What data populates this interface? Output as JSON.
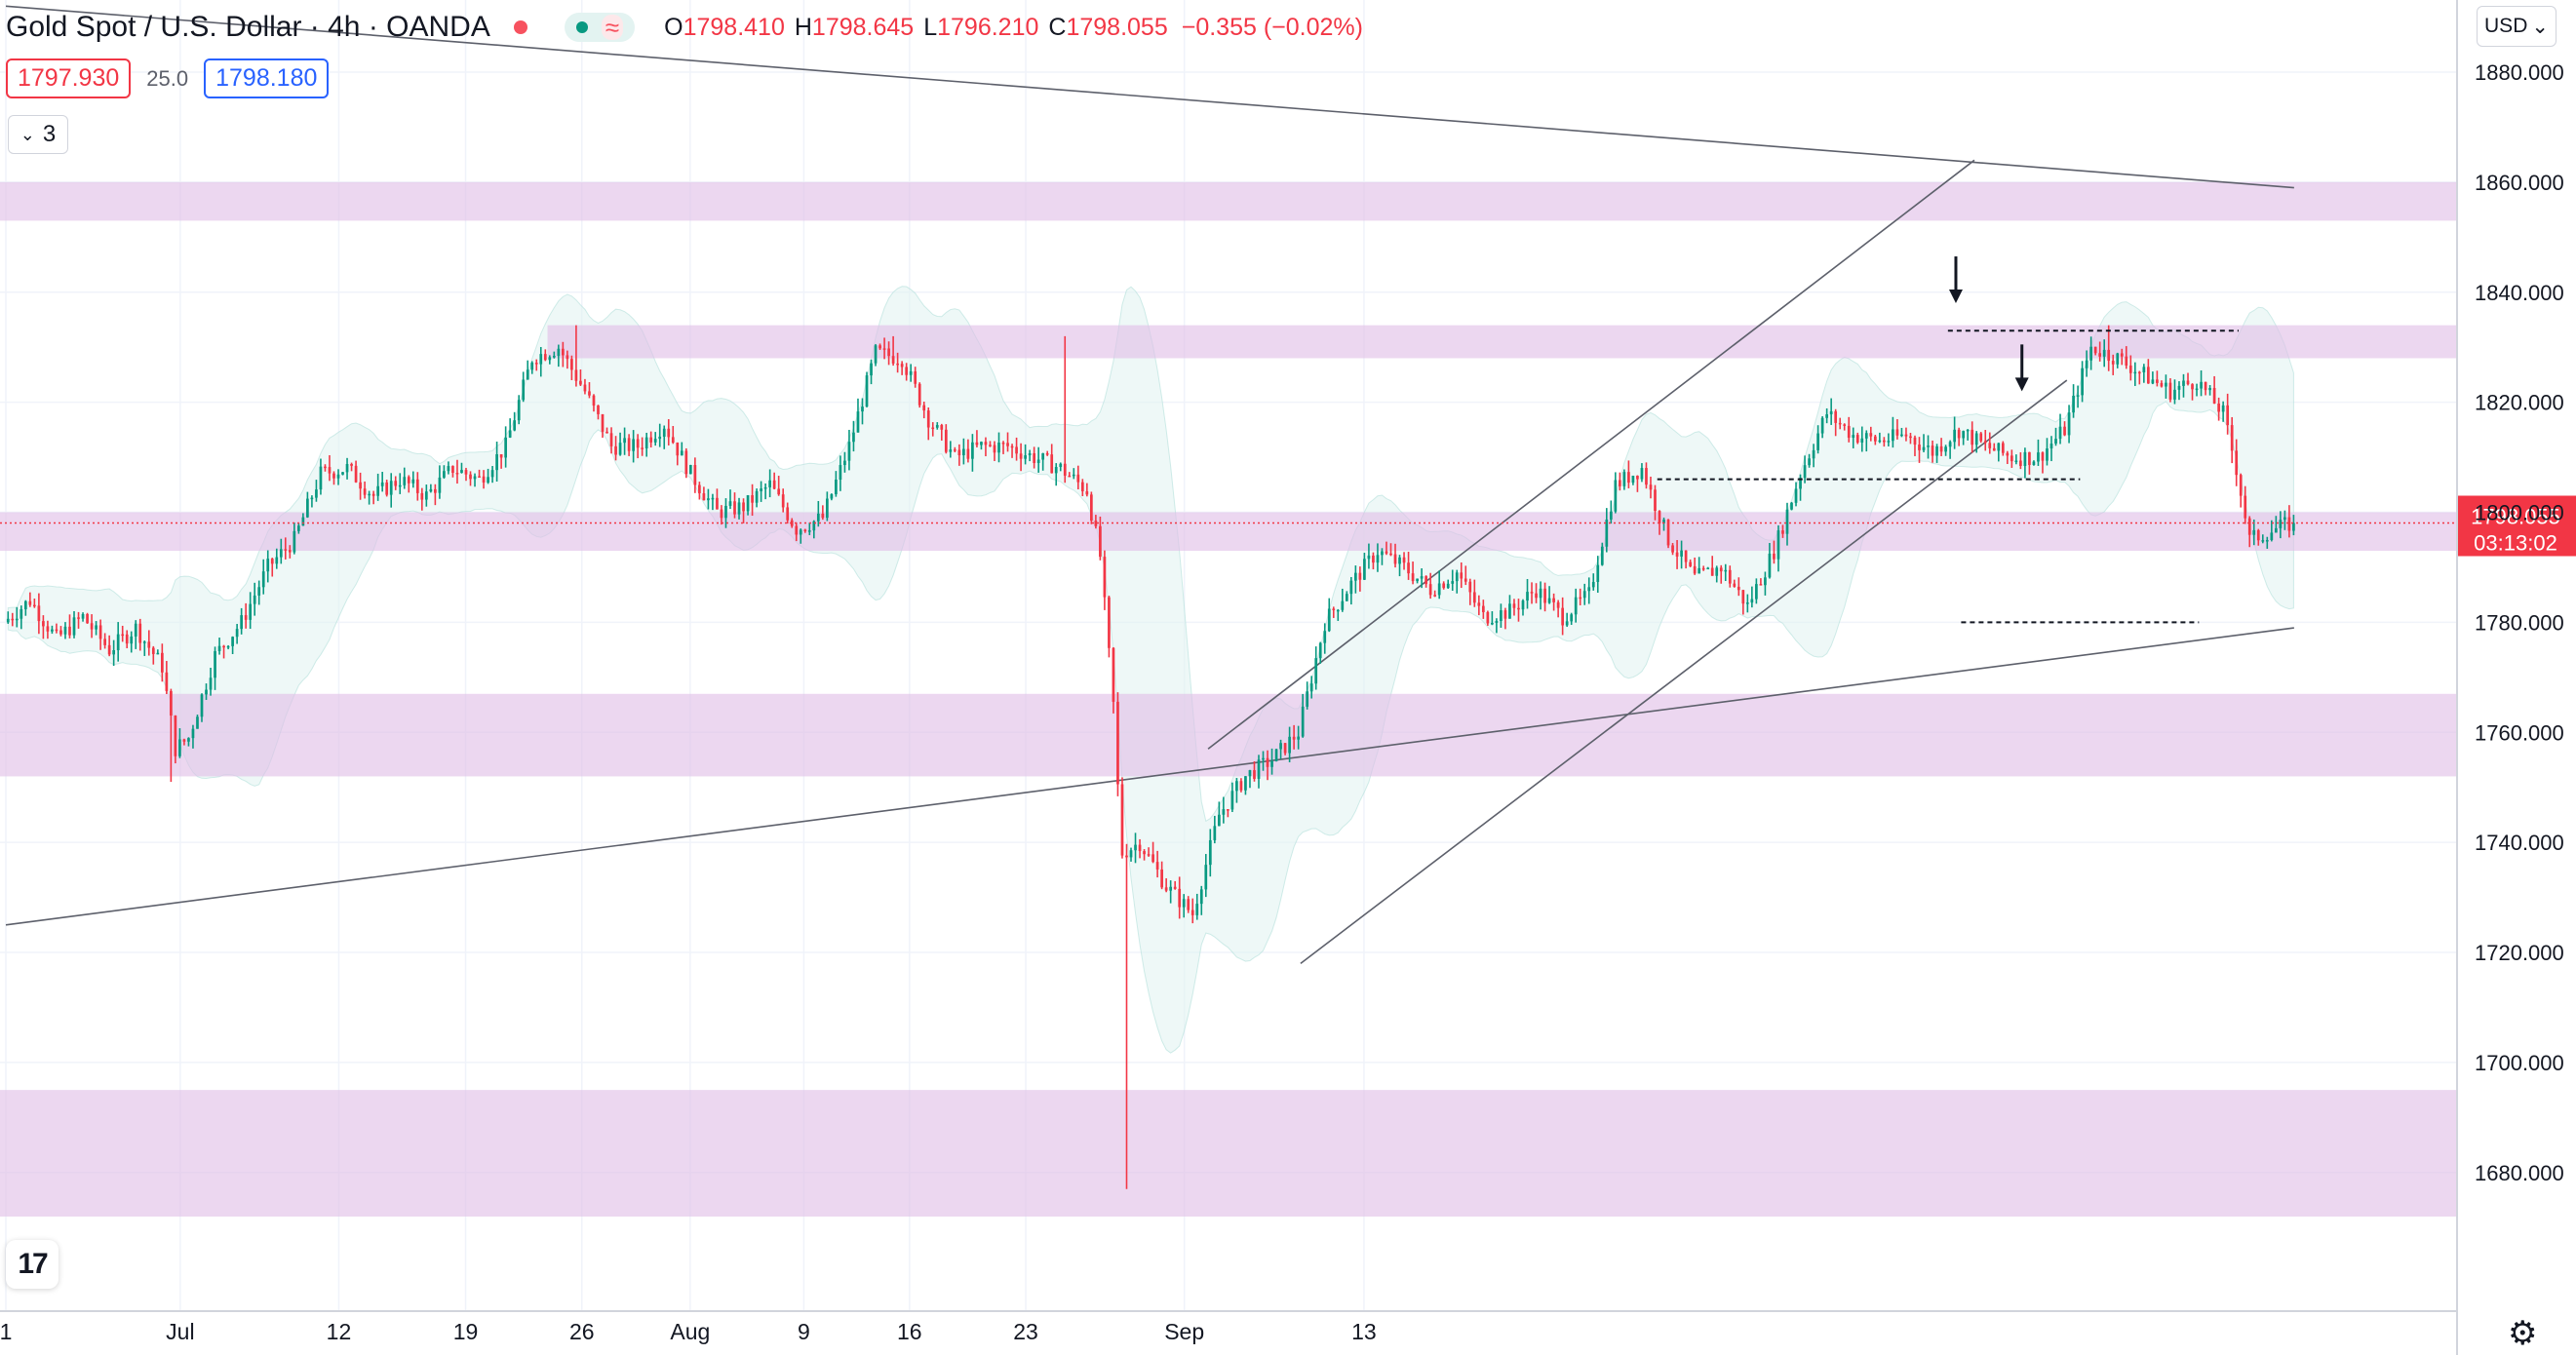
{
  "header": {
    "symbol_title": "Gold Spot / U.S. Dollar · 4h · OANDA",
    "ohlc": [
      {
        "key": "O",
        "value": "1798.410"
      },
      {
        "key": "H",
        "value": "1798.645"
      },
      {
        "key": "L",
        "value": "1796.210"
      },
      {
        "key": "C",
        "value": "1798.055"
      }
    ],
    "change": "−0.355 (−0.02%)",
    "market_closed_color": "#f7525f"
  },
  "trade": {
    "sell_price": "1797.930",
    "spread": "25.0",
    "buy_price": "1798.180"
  },
  "indicators_toggle": {
    "count": "3"
  },
  "currency_selector": {
    "label": "USD"
  },
  "price_tag": {
    "value": "1798.055",
    "countdown": "03:13:02"
  },
  "colors": {
    "up": "#089981",
    "down": "#f23645",
    "zone": "#e1bee7",
    "band": "#e0f2f1",
    "grid": "#f0f3fa"
  },
  "chart_data": {
    "type": "candlestick",
    "symbol": "XAUUSD",
    "timeframe": "4h",
    "ylim": [
      1665,
      1890
    ],
    "y_ticks": [
      "1880.000",
      "1860.000",
      "1840.000",
      "1820.000",
      "1800.000",
      "1780.000",
      "1760.000",
      "1740.000",
      "1720.000",
      "1700.000",
      "1680.000"
    ],
    "x_ticks": [
      "1",
      "Jul",
      "12",
      "19",
      "26",
      "Aug",
      "9",
      "16",
      "23",
      "Sep",
      "13"
    ],
    "last_price": 1798.055,
    "price_path": [
      {
        "day": 0,
        "price": 1780
      },
      {
        "day": 1,
        "price": 1784
      },
      {
        "day": 2,
        "price": 1777
      },
      {
        "day": 3,
        "price": 1781
      },
      {
        "day": 4,
        "price": 1775
      },
      {
        "day": 5,
        "price": 1779
      },
      {
        "day": 6,
        "price": 1772
      },
      {
        "day": 6.5,
        "price": 1757
      },
      {
        "day": 7,
        "price": 1759
      },
      {
        "day": 8,
        "price": 1774
      },
      {
        "day": 9,
        "price": 1780
      },
      {
        "day": 10,
        "price": 1790
      },
      {
        "day": 11,
        "price": 1795
      },
      {
        "day": 12,
        "price": 1807
      },
      {
        "day": 13,
        "price": 1808
      },
      {
        "day": 14,
        "price": 1803
      },
      {
        "day": 15,
        "price": 1806
      },
      {
        "day": 16,
        "price": 1803
      },
      {
        "day": 17,
        "price": 1808
      },
      {
        "day": 18,
        "price": 1806
      },
      {
        "day": 19,
        "price": 1812
      },
      {
        "day": 20,
        "price": 1828
      },
      {
        "day": 21,
        "price": 1830
      },
      {
        "day": 22,
        "price": 1822
      },
      {
        "day": 23,
        "price": 1812
      },
      {
        "day": 24,
        "price": 1812
      },
      {
        "day": 25,
        "price": 1816
      },
      {
        "day": 26,
        "price": 1807
      },
      {
        "day": 27,
        "price": 1800
      },
      {
        "day": 28,
        "price": 1801
      },
      {
        "day": 29,
        "price": 1805
      },
      {
        "day": 30,
        "price": 1797
      },
      {
        "day": 31,
        "price": 1799
      },
      {
        "day": 32,
        "price": 1812
      },
      {
        "day": 33,
        "price": 1829
      },
      {
        "day": 34,
        "price": 1828
      },
      {
        "day": 35,
        "price": 1817
      },
      {
        "day": 36,
        "price": 1810
      },
      {
        "day": 37,
        "price": 1812
      },
      {
        "day": 38,
        "price": 1812
      },
      {
        "day": 39,
        "price": 1810
      },
      {
        "day": 40,
        "price": 1808
      },
      {
        "day": 41,
        "price": 1804
      },
      {
        "day": 41.5,
        "price": 1792
      },
      {
        "day": 42,
        "price": 1765
      },
      {
        "day": 42.3,
        "price": 1738
      },
      {
        "day": 43,
        "price": 1740
      },
      {
        "day": 44,
        "price": 1732
      },
      {
        "day": 45,
        "price": 1727
      },
      {
        "day": 46,
        "price": 1745
      },
      {
        "day": 47,
        "price": 1752
      },
      {
        "day": 48,
        "price": 1755
      },
      {
        "day": 49,
        "price": 1760
      },
      {
        "day": 50,
        "price": 1780
      },
      {
        "day": 51,
        "price": 1787
      },
      {
        "day": 52,
        "price": 1793
      },
      {
        "day": 53,
        "price": 1790
      },
      {
        "day": 54,
        "price": 1786
      },
      {
        "day": 55,
        "price": 1789
      },
      {
        "day": 56,
        "price": 1781
      },
      {
        "day": 57,
        "price": 1782
      },
      {
        "day": 58,
        "price": 1786
      },
      {
        "day": 59,
        "price": 1781
      },
      {
        "day": 60,
        "price": 1785
      },
      {
        "day": 61,
        "price": 1805
      },
      {
        "day": 62,
        "price": 1808
      },
      {
        "day": 63,
        "price": 1795
      },
      {
        "day": 64,
        "price": 1788
      },
      {
        "day": 65,
        "price": 1790
      },
      {
        "day": 66,
        "price": 1783
      },
      {
        "day": 67,
        "price": 1793
      },
      {
        "day": 68,
        "price": 1807
      },
      {
        "day": 69,
        "price": 1818
      },
      {
        "day": 70,
        "price": 1814
      },
      {
        "day": 71,
        "price": 1813
      },
      {
        "day": 72,
        "price": 1814
      },
      {
        "day": 73,
        "price": 1811
      },
      {
        "day": 74,
        "price": 1815
      },
      {
        "day": 75,
        "price": 1812
      },
      {
        "day": 76,
        "price": 1810
      },
      {
        "day": 77,
        "price": 1810
      },
      {
        "day": 78,
        "price": 1815
      },
      {
        "day": 79,
        "price": 1830
      },
      {
        "day": 80,
        "price": 1828
      },
      {
        "day": 81,
        "price": 1825
      },
      {
        "day": 82,
        "price": 1822
      },
      {
        "day": 83,
        "price": 1824
      },
      {
        "day": 84,
        "price": 1818
      },
      {
        "day": 84.5,
        "price": 1808
      },
      {
        "day": 85,
        "price": 1795
      },
      {
        "day": 86,
        "price": 1797
      },
      {
        "day": 86.6,
        "price": 1798
      }
    ],
    "spikes": [
      {
        "day": 42.4,
        "low": 1677
      },
      {
        "day": 6.2,
        "low": 1751
      },
      {
        "day": 21.5,
        "high": 1834
      },
      {
        "day": 33.5,
        "high": 1832
      },
      {
        "day": 40,
        "high": 1832
      },
      {
        "day": 79.5,
        "high": 1834
      }
    ],
    "zones": [
      {
        "low": 1853,
        "high": 1860
      },
      {
        "low": 1828,
        "high": 1834,
        "from_day": 20.5
      },
      {
        "low": 1793,
        "high": 1800
      },
      {
        "low": 1752,
        "high": 1767
      },
      {
        "low": 1672,
        "high": 1695
      }
    ],
    "trendlines": [
      {
        "d1": 0,
        "p1": 1892,
        "d2": 86.6,
        "p2": 1859
      },
      {
        "d1": 0,
        "p1": 1725,
        "d2": 86.6,
        "p2": 1779
      },
      {
        "d1": 45.5,
        "p1": 1757,
        "d2": 74.5,
        "p2": 1864
      },
      {
        "d1": 49,
        "p1": 1718,
        "d2": 78,
        "p2": 1824
      }
    ],
    "dashed_levels": [
      {
        "price": 1833,
        "from_day": 73.5,
        "to_day": 84.5
      },
      {
        "price": 1806,
        "from_day": 62.5,
        "to_day": 78.5
      },
      {
        "price": 1780,
        "from_day": 74,
        "to_day": 83
      }
    ],
    "arrows": [
      {
        "day": 73.8,
        "price": 1838
      },
      {
        "day": 76.3,
        "price": 1822
      }
    ]
  }
}
